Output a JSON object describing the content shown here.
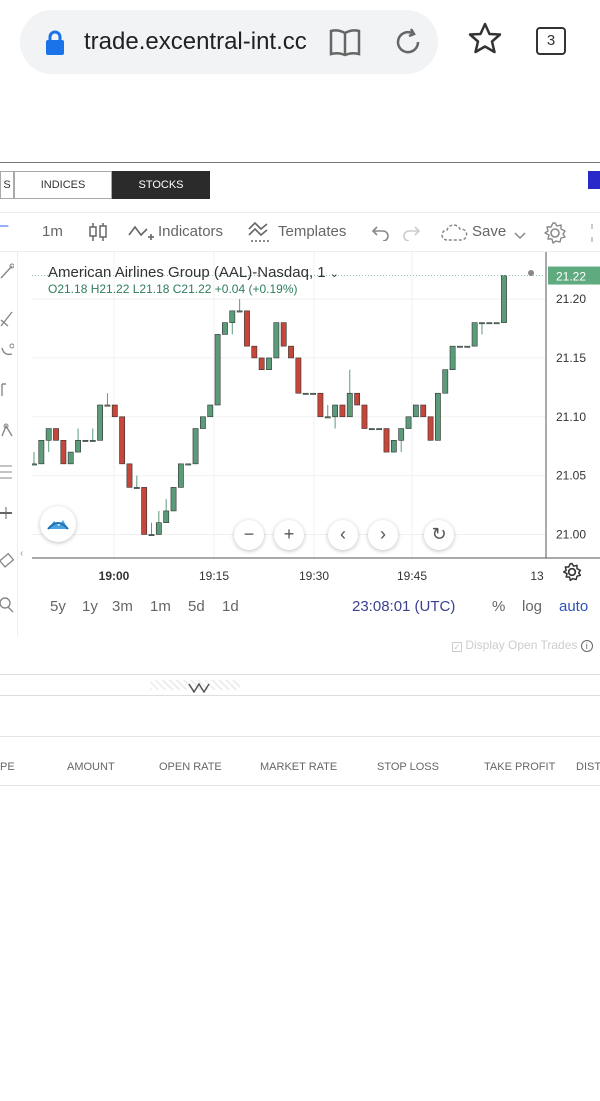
{
  "browser": {
    "url": "trade.excentral-int.cc",
    "tab_count": "3"
  },
  "markets": {
    "tabs": [
      {
        "label": "S"
      },
      {
        "label": "INDICES"
      },
      {
        "label": "STOCKS"
      }
    ]
  },
  "toolbar": {
    "interval": "1m",
    "indicators_label": "Indicators",
    "templates_label": "Templates",
    "save_label": "Save"
  },
  "legend": {
    "title": "American Airlines Group (AAL)-Nasdaq, 1",
    "ohlc": "O21.18  H21.22  L21.18  C21.22  +0.04 (+0.19%)"
  },
  "price_badge": "21.22",
  "axis_extra_label": "13",
  "range": {
    "items": [
      "5y",
      "1y",
      "3m",
      "1m",
      "5d",
      "1d"
    ],
    "time": "23:08:01 (UTC)",
    "percent": "%",
    "log": "log",
    "auto": "auto"
  },
  "display_open_trades": "Display Open Trades",
  "table": {
    "columns": [
      "PE",
      "AMOUNT",
      "OPEN RATE",
      "MARKET RATE",
      "STOP LOSS",
      "TAKE PROFIT",
      "DISTA"
    ]
  },
  "colors": {
    "up": "#5b9b7a",
    "down": "#c4473a",
    "badge": "#5fab7f"
  },
  "chart_data": {
    "type": "candlestick",
    "x_ticks": [
      "19:00",
      "19:15",
      "19:30",
      "19:45"
    ],
    "y_ticks": [
      21.0,
      21.05,
      21.1,
      21.15,
      21.2
    ],
    "ylim": [
      20.98,
      21.24
    ],
    "candles": [
      {
        "o": 21.06,
        "h": 21.07,
        "l": 21.06,
        "c": 21.06
      },
      {
        "o": 21.06,
        "h": 21.08,
        "l": 21.06,
        "c": 21.08
      },
      {
        "o": 21.08,
        "h": 21.09,
        "l": 21.07,
        "c": 21.09
      },
      {
        "o": 21.09,
        "h": 21.09,
        "l": 21.08,
        "c": 21.08
      },
      {
        "o": 21.08,
        "h": 21.08,
        "l": 21.06,
        "c": 21.06
      },
      {
        "o": 21.06,
        "h": 21.07,
        "l": 21.06,
        "c": 21.07
      },
      {
        "o": 21.07,
        "h": 21.09,
        "l": 21.07,
        "c": 21.08
      },
      {
        "o": 21.08,
        "h": 21.08,
        "l": 21.08,
        "c": 21.08
      },
      {
        "o": 21.08,
        "h": 21.09,
        "l": 21.08,
        "c": 21.08
      },
      {
        "o": 21.08,
        "h": 21.11,
        "l": 21.08,
        "c": 21.11
      },
      {
        "o": 21.11,
        "h": 21.12,
        "l": 21.11,
        "c": 21.11
      },
      {
        "o": 21.11,
        "h": 21.11,
        "l": 21.1,
        "c": 21.1
      },
      {
        "o": 21.1,
        "h": 21.1,
        "l": 21.06,
        "c": 21.06
      },
      {
        "o": 21.06,
        "h": 21.06,
        "l": 21.04,
        "c": 21.04
      },
      {
        "o": 21.04,
        "h": 21.05,
        "l": 21.04,
        "c": 21.04
      },
      {
        "o": 21.04,
        "h": 21.04,
        "l": 21.0,
        "c": 21.0
      },
      {
        "o": 21.0,
        "h": 21.01,
        "l": 21.0,
        "c": 21.0
      },
      {
        "o": 21.0,
        "h": 21.02,
        "l": 21.0,
        "c": 21.01
      },
      {
        "o": 21.01,
        "h": 21.03,
        "l": 21.01,
        "c": 21.02
      },
      {
        "o": 21.02,
        "h": 21.04,
        "l": 21.02,
        "c": 21.04
      },
      {
        "o": 21.04,
        "h": 21.06,
        "l": 21.04,
        "c": 21.06
      },
      {
        "o": 21.06,
        "h": 21.06,
        "l": 21.06,
        "c": 21.06
      },
      {
        "o": 21.06,
        "h": 21.09,
        "l": 21.06,
        "c": 21.09
      },
      {
        "o": 21.09,
        "h": 21.1,
        "l": 21.09,
        "c": 21.1
      },
      {
        "o": 21.1,
        "h": 21.11,
        "l": 21.1,
        "c": 21.11
      },
      {
        "o": 21.11,
        "h": 21.17,
        "l": 21.11,
        "c": 21.17
      },
      {
        "o": 21.17,
        "h": 21.18,
        "l": 21.17,
        "c": 21.18
      },
      {
        "o": 21.18,
        "h": 21.19,
        "l": 21.17,
        "c": 21.19
      },
      {
        "o": 21.19,
        "h": 21.2,
        "l": 21.19,
        "c": 21.19
      },
      {
        "o": 21.19,
        "h": 21.19,
        "l": 21.16,
        "c": 21.16
      },
      {
        "o": 21.16,
        "h": 21.16,
        "l": 21.15,
        "c": 21.15
      },
      {
        "o": 21.15,
        "h": 21.15,
        "l": 21.14,
        "c": 21.14
      },
      {
        "o": 21.14,
        "h": 21.15,
        "l": 21.14,
        "c": 21.15
      },
      {
        "o": 21.15,
        "h": 21.18,
        "l": 21.15,
        "c": 21.18
      },
      {
        "o": 21.18,
        "h": 21.18,
        "l": 21.16,
        "c": 21.16
      },
      {
        "o": 21.16,
        "h": 21.16,
        "l": 21.15,
        "c": 21.15
      },
      {
        "o": 21.15,
        "h": 21.15,
        "l": 21.12,
        "c": 21.12
      },
      {
        "o": 21.12,
        "h": 21.12,
        "l": 21.12,
        "c": 21.12
      },
      {
        "o": 21.12,
        "h": 21.12,
        "l": 21.12,
        "c": 21.12
      },
      {
        "o": 21.12,
        "h": 21.12,
        "l": 21.1,
        "c": 21.1
      },
      {
        "o": 21.1,
        "h": 21.11,
        "l": 21.1,
        "c": 21.1
      },
      {
        "o": 21.1,
        "h": 21.11,
        "l": 21.09,
        "c": 21.11
      },
      {
        "o": 21.11,
        "h": 21.11,
        "l": 21.1,
        "c": 21.1
      },
      {
        "o": 21.1,
        "h": 21.14,
        "l": 21.1,
        "c": 21.12
      },
      {
        "o": 21.12,
        "h": 21.12,
        "l": 21.11,
        "c": 21.11
      },
      {
        "o": 21.11,
        "h": 21.11,
        "l": 21.09,
        "c": 21.09
      },
      {
        "o": 21.09,
        "h": 21.09,
        "l": 21.09,
        "c": 21.09
      },
      {
        "o": 21.09,
        "h": 21.09,
        "l": 21.09,
        "c": 21.09
      },
      {
        "o": 21.09,
        "h": 21.09,
        "l": 21.07,
        "c": 21.07
      },
      {
        "o": 21.07,
        "h": 21.08,
        "l": 21.07,
        "c": 21.08
      },
      {
        "o": 21.08,
        "h": 21.09,
        "l": 21.07,
        "c": 21.09
      },
      {
        "o": 21.09,
        "h": 21.1,
        "l": 21.09,
        "c": 21.1
      },
      {
        "o": 21.1,
        "h": 21.11,
        "l": 21.1,
        "c": 21.11
      },
      {
        "o": 21.11,
        "h": 21.11,
        "l": 21.1,
        "c": 21.1
      },
      {
        "o": 21.1,
        "h": 21.1,
        "l": 21.08,
        "c": 21.08
      },
      {
        "o": 21.08,
        "h": 21.12,
        "l": 21.08,
        "c": 21.12
      },
      {
        "o": 21.12,
        "h": 21.14,
        "l": 21.12,
        "c": 21.14
      },
      {
        "o": 21.14,
        "h": 21.16,
        "l": 21.14,
        "c": 21.16
      },
      {
        "o": 21.16,
        "h": 21.16,
        "l": 21.16,
        "c": 21.16
      },
      {
        "o": 21.16,
        "h": 21.16,
        "l": 21.16,
        "c": 21.16
      },
      {
        "o": 21.16,
        "h": 21.18,
        "l": 21.16,
        "c": 21.18
      },
      {
        "o": 21.18,
        "h": 21.18,
        "l": 21.17,
        "c": 21.18
      },
      {
        "o": 21.18,
        "h": 21.18,
        "l": 21.18,
        "c": 21.18
      },
      {
        "o": 21.18,
        "h": 21.18,
        "l": 21.18,
        "c": 21.18
      },
      {
        "o": 21.18,
        "h": 21.22,
        "l": 21.18,
        "c": 21.22
      }
    ]
  }
}
